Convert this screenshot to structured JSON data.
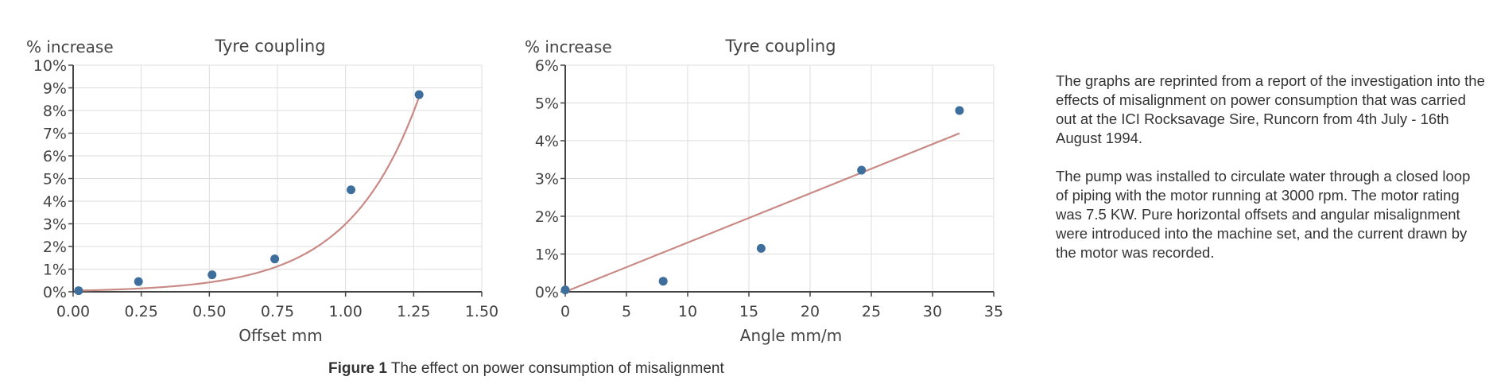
{
  "chart_data": [
    {
      "type": "scatter",
      "title": "Tyre coupling",
      "ylabel": "% increase",
      "xlabel": "Offset mm",
      "xlim": [
        0,
        1.5
      ],
      "ylim": [
        0,
        10
      ],
      "x_ticks": [
        "0.00",
        "0.25",
        "0.50",
        "0.75",
        "1.00",
        "1.25",
        "1.50"
      ],
      "y_ticks": [
        "0%",
        "1%",
        "2%",
        "3%",
        "4%",
        "5%",
        "6%",
        "7%",
        "8%",
        "9%",
        "10%"
      ],
      "grid": true,
      "trendline": "exponential",
      "series": [
        {
          "points": [
            [
              0.02,
              0.05
            ],
            [
              0.24,
              0.45
            ],
            [
              0.51,
              0.75
            ],
            [
              0.74,
              1.45
            ],
            [
              1.02,
              4.5
            ],
            [
              1.27,
              8.7
            ]
          ]
        }
      ]
    },
    {
      "type": "scatter",
      "title": "Tyre coupling",
      "ylabel": "% increase",
      "xlabel": "Angle mm/m",
      "xlim": [
        0,
        35
      ],
      "ylim": [
        0,
        6
      ],
      "x_ticks": [
        "0",
        "5",
        "10",
        "15",
        "20",
        "25",
        "30",
        "35"
      ],
      "y_ticks": [
        "0%",
        "1%",
        "2%",
        "3%",
        "4%",
        "5%",
        "6%"
      ],
      "grid": true,
      "trendline": "linear",
      "series": [
        {
          "points": [
            [
              0,
              0.05
            ],
            [
              8,
              0.28
            ],
            [
              16,
              1.15
            ],
            [
              24.2,
              3.22
            ],
            [
              32.2,
              4.8
            ]
          ]
        }
      ]
    }
  ],
  "colors": {
    "marker": "#3d6e9c",
    "trend": "#c98a86",
    "grid": "#dddddd",
    "axis": "#444444"
  },
  "caption": {
    "label": "Figure 1",
    "text": " The effect on power consumption of misalignment"
  },
  "description": [
    "The graphs are reprinted from a report of the investigation into the effects of misalignment on power consumption that was carried out at the ICI Rocksavage Sire, Runcorn from 4th July - 16th August 1994.",
    "The pump was installed to circulate water through a closed loop of piping with the motor running at 3000 rpm. The motor rating was 7.5 KW. Pure horizontal offsets and angular misalignment were introduced into the machine set, and the current drawn by the motor was recorded."
  ]
}
